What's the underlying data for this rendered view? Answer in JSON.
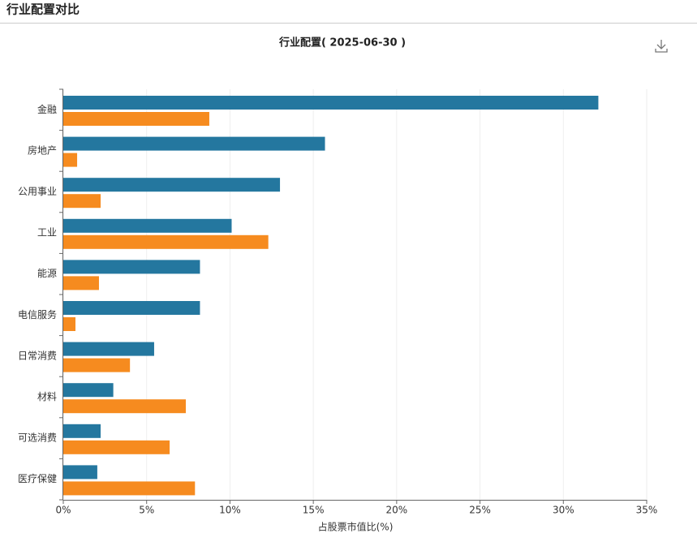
{
  "header": {
    "title": "行业配置对比"
  },
  "chart_data": {
    "type": "hbar",
    "title": "行业配置( 2025-06-30 )",
    "x_label": "占股票市值比(%)",
    "categories": [
      "金融",
      "房地产",
      "公用事业",
      "工业",
      "能源",
      "电信服务",
      "日常消费",
      "材料",
      "可选消费",
      "医疗保健"
    ],
    "series": [
      {
        "color": "#24779f",
        "values": [
          32.1,
          15.7,
          13.0,
          10.1,
          8.2,
          8.2,
          5.45,
          3.0,
          2.24,
          2.04
        ]
      },
      {
        "color": "#f68b1f",
        "values": [
          8.76,
          0.83,
          2.24,
          12.3,
          2.14,
          0.73,
          4.0,
          7.35,
          6.38,
          7.9
        ]
      }
    ],
    "xlim": [
      0,
      35
    ],
    "xticks": [
      {
        "value": 0,
        "label": "0%"
      },
      {
        "value": 5,
        "label": "5%"
      },
      {
        "value": 10,
        "label": "10%"
      },
      {
        "value": 15,
        "label": "15%"
      },
      {
        "value": 20,
        "label": "20%"
      },
      {
        "value": 25,
        "label": "25%"
      },
      {
        "value": 30,
        "label": "30%"
      },
      {
        "value": 35,
        "label": "35%"
      }
    ],
    "grid": true
  }
}
